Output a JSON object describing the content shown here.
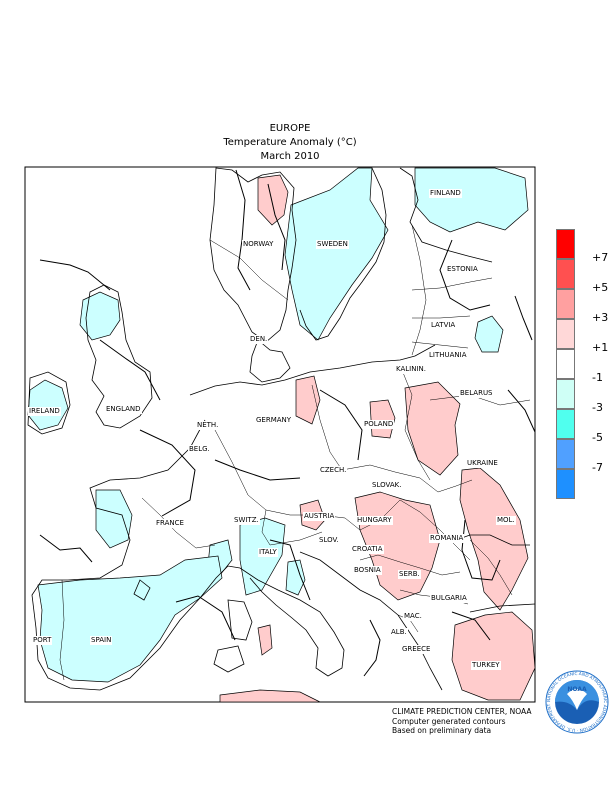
{
  "title": {
    "line1": "EUROPE",
    "line2": "Temperature Anomaly (°C)",
    "line3": "March 2010"
  },
  "countries": [
    {
      "key": "finland",
      "name": "FINLAND"
    },
    {
      "key": "norway",
      "name": "NORWAY"
    },
    {
      "key": "sweden",
      "name": "SWEDEN"
    },
    {
      "key": "estonia",
      "name": "ESTONIA"
    },
    {
      "key": "latvia",
      "name": "LATVIA"
    },
    {
      "key": "den",
      "name": "DEN."
    },
    {
      "key": "lithuania",
      "name": "LITHUANIA"
    },
    {
      "key": "kalinin",
      "name": "KALININ."
    },
    {
      "key": "ireland",
      "name": "IRELAND"
    },
    {
      "key": "england",
      "name": "ENGLAND"
    },
    {
      "key": "belarus",
      "name": "BELARUS"
    },
    {
      "key": "neth",
      "name": "NETH."
    },
    {
      "key": "germany",
      "name": "GERMANY"
    },
    {
      "key": "poland",
      "name": "POLAND"
    },
    {
      "key": "belg",
      "name": "BELG."
    },
    {
      "key": "ukraine",
      "name": "UKRAINE"
    },
    {
      "key": "czech",
      "name": "CZECH."
    },
    {
      "key": "slovak",
      "name": "SLOVAK."
    },
    {
      "key": "france",
      "name": "FRANCE"
    },
    {
      "key": "switz",
      "name": "SWITZ."
    },
    {
      "key": "austria",
      "name": "AUSTRIA"
    },
    {
      "key": "hungary",
      "name": "HUNGARY"
    },
    {
      "key": "mol",
      "name": "MOL."
    },
    {
      "key": "romania",
      "name": "ROMANIA"
    },
    {
      "key": "italy",
      "name": "ITALY"
    },
    {
      "key": "slov",
      "name": "SLOV."
    },
    {
      "key": "croatia",
      "name": "CROATIA"
    },
    {
      "key": "bosnia",
      "name": "BOSNIA"
    },
    {
      "key": "serb",
      "name": "SERB."
    },
    {
      "key": "bulgaria",
      "name": "BULGARIA"
    },
    {
      "key": "port",
      "name": "PORT"
    },
    {
      "key": "spain",
      "name": "SPAIN"
    },
    {
      "key": "mac",
      "name": "MAC."
    },
    {
      "key": "alb",
      "name": "ALB."
    },
    {
      "key": "greece",
      "name": "GREECE"
    },
    {
      "key": "turkey",
      "name": "TURKEY"
    }
  ],
  "legend": {
    "bins": [
      {
        "color": "#ff0000"
      },
      {
        "color": "#ff5050"
      },
      {
        "color": "#ffa0a0"
      },
      {
        "color": "#ffd8d8"
      },
      {
        "color": "#ffffff"
      },
      {
        "color": "#cffff6"
      },
      {
        "color": "#50ffee"
      },
      {
        "color": "#50a0ff"
      },
      {
        "color": "#1e90ff"
      }
    ],
    "labels": [
      "+7",
      "+5",
      "+3",
      "+1",
      "-1",
      "-3",
      "-5",
      "-7"
    ]
  },
  "colors": {
    "cold": "#ccffff",
    "warm": "#ffcccc"
  },
  "credits": {
    "line1": "CLIMATE PREDICTION CENTER, NOAA",
    "line2": "Computer generated contours",
    "line3": "Based on preliminary data"
  },
  "logo": {
    "text": "NOAA",
    "ring": "NATIONAL OCEANIC AND ATMOSPHERIC ADMINISTRATION · U.S. DEPARTMENT OF COMMERCE"
  }
}
